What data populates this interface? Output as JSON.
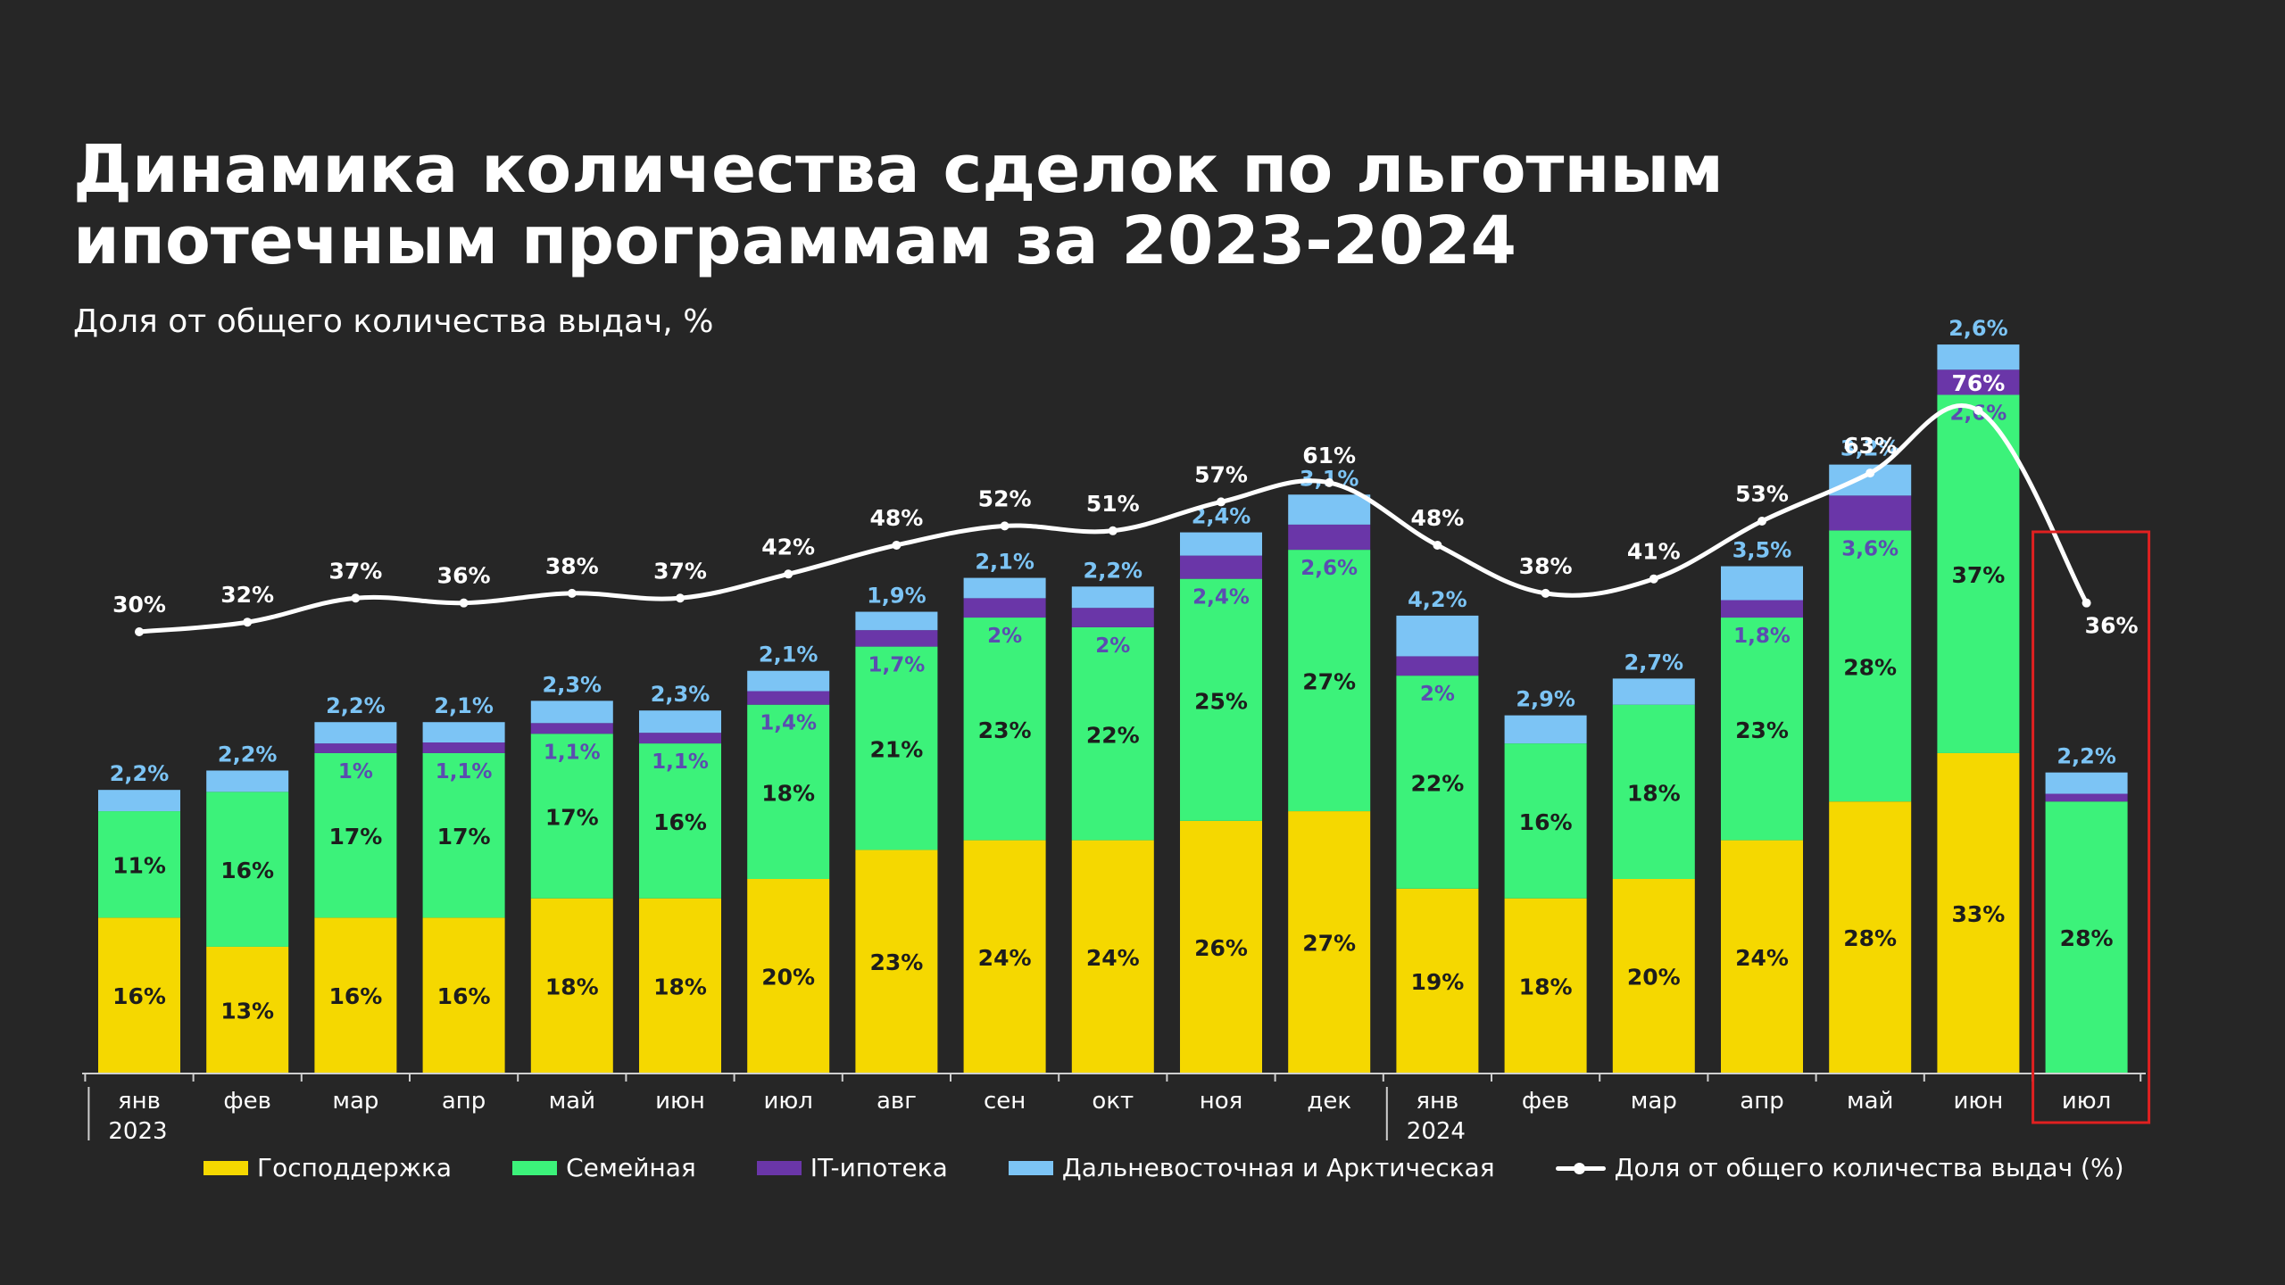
{
  "title_lines": [
    "Динамика количества сделок по льготным",
    "ипотечным программам за 2023-2024"
  ],
  "subtitle": "Доля от общего количества выдач, %",
  "colors": {
    "background": "#262626",
    "gospodderzhka": "#f5d800",
    "semeynaya": "#3cf27a",
    "it": "#6a36a8",
    "dalnevostochnaya": "#7cc4f5",
    "line": "#ffffff",
    "highlight": "#e02020"
  },
  "legend": [
    {
      "name": "Господдержка",
      "color": "#f5d800",
      "kind": "bar"
    },
    {
      "name": "Семейная",
      "color": "#3cf27a",
      "kind": "bar"
    },
    {
      "name": "IT-ипотека",
      "color": "#6a36a8",
      "kind": "bar"
    },
    {
      "name": "Дальневосточная и Арктическая",
      "color": "#7cc4f5",
      "kind": "bar"
    },
    {
      "name": "Доля от общего количества выдач (%)",
      "color": "#ffffff",
      "kind": "line"
    }
  ],
  "chart_data": {
    "type": "bar",
    "stacked": true,
    "categories": [
      "янв",
      "фев",
      "мар",
      "апр",
      "май",
      "июн",
      "июл",
      "авг",
      "сен",
      "окт",
      "ноя",
      "дек",
      "янв",
      "фев",
      "мар",
      "апр",
      "май",
      "июн",
      "июл"
    ],
    "years": [
      {
        "label": "2023",
        "start_index": 0
      },
      {
        "label": "2024",
        "start_index": 12
      }
    ],
    "series": [
      {
        "name": "Господдержка",
        "color": "#f5d800",
        "values": [
          16,
          13,
          16,
          16,
          18,
          18,
          20,
          23,
          24,
          24,
          26,
          27,
          19,
          18,
          20,
          24,
          28,
          33,
          0
        ],
        "labels": [
          "16%",
          "13%",
          "16%",
          "16%",
          "18%",
          "18%",
          "20%",
          "23%",
          "24%",
          "24%",
          "26%",
          "27%",
          "19%",
          "18%",
          "20%",
          "24%",
          "28%",
          "33%",
          ""
        ]
      },
      {
        "name": "Семейная",
        "color": "#3cf27a",
        "values": [
          11,
          16,
          17,
          17,
          17,
          16,
          18,
          21,
          23,
          22,
          25,
          27,
          22,
          16,
          18,
          23,
          28,
          37,
          28
        ],
        "labels": [
          "11%",
          "16%",
          "17%",
          "17%",
          "17%",
          "16%",
          "18%",
          "21%",
          "23%",
          "22%",
          "25%",
          "27%",
          "22%",
          "16%",
          "18%",
          "23%",
          "28%",
          "37%",
          "28%"
        ]
      },
      {
        "name": "IT-ипотека",
        "color": "#6a36a8",
        "values": [
          0,
          0,
          1,
          1.1,
          1.1,
          1.1,
          1.4,
          1.7,
          2,
          2,
          2.4,
          2.6,
          2,
          0,
          0,
          1.8,
          3.6,
          2.6,
          0.8
        ],
        "labels": [
          "",
          "",
          "1%",
          "1,1%",
          "1,1%",
          "1,1%",
          "1,4%",
          "1,7%",
          "2%",
          "2%",
          "2,4%",
          "2,6%",
          "2%",
          "",
          "",
          "1,8%",
          "3,6%",
          "2,6%",
          ""
        ]
      },
      {
        "name": "Дальневосточная и Арктическая",
        "color": "#7cc4f5",
        "values": [
          2.2,
          2.2,
          2.2,
          2.1,
          2.3,
          2.3,
          2.1,
          1.9,
          2.1,
          2.2,
          2.4,
          3.1,
          4.2,
          2.9,
          2.7,
          3.5,
          3.2,
          2.6,
          2.2
        ],
        "labels": [
          "2,2%",
          "2,2%",
          "2,2%",
          "2,1%",
          "2,3%",
          "2,3%",
          "2,1%",
          "1,9%",
          "2,1%",
          "2,2%",
          "2,4%",
          "3,1%",
          "4,2%",
          "2,9%",
          "2,7%",
          "3,5%",
          "3,2%",
          "2,6%",
          "2,2%"
        ]
      }
    ],
    "line": {
      "name": "Доля от общего количества выдач (%)",
      "values": [
        30,
        32,
        37,
        36,
        38,
        37,
        42,
        48,
        52,
        51,
        57,
        61,
        48,
        38,
        41,
        53,
        63,
        76,
        36
      ],
      "labels": [
        "30%",
        "32%",
        "37%",
        "36%",
        "38%",
        "37%",
        "42%",
        "48%",
        "52%",
        "51%",
        "57%",
        "61%",
        "48%",
        "38%",
        "41%",
        "53%",
        "63%",
        "76%",
        "36%"
      ]
    },
    "highlighted_category_index": 18,
    "grid": false,
    "legend_position": "bottom"
  }
}
